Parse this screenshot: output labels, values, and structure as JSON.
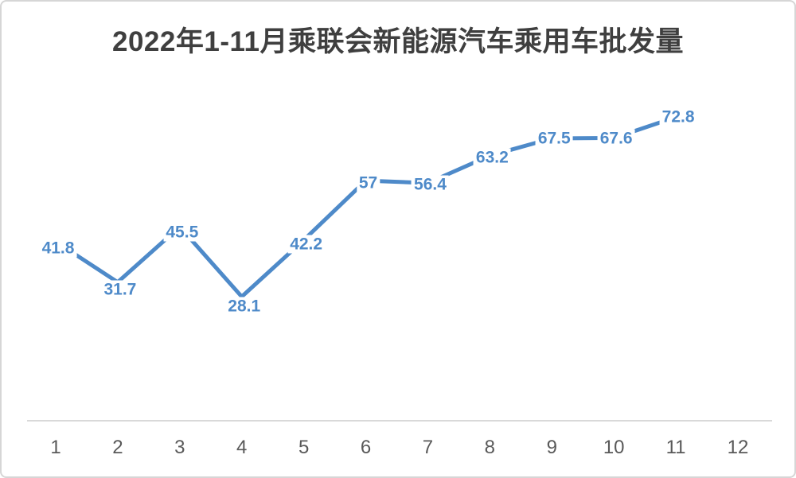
{
  "chart_data": {
    "type": "line",
    "title": "2022年1-11月乘联会新能源汽车乘用车批发量",
    "categories": [
      "1",
      "2",
      "3",
      "4",
      "5",
      "6",
      "7",
      "8",
      "9",
      "10",
      "11",
      "12"
    ],
    "values": [
      41.8,
      31.7,
      45.5,
      28.1,
      42.2,
      57,
      56.4,
      63.2,
      67.5,
      67.6,
      72.8
    ],
    "data_labels": [
      "41.8",
      "31.7",
      "45.5",
      "28.1",
      "42.2",
      "57",
      "56.4",
      "63.2",
      "67.5",
      "67.6",
      "72.8"
    ],
    "xlabel": "",
    "ylabel": "",
    "legend": "none",
    "grid": false,
    "ylim_note": "no y-axis shown; values only as data labels",
    "colors": {
      "line": "#4e8ac9",
      "data_label": "#4e8ac9",
      "title": "#3f3f3f",
      "axis_tick_label": "#595959",
      "axis_line": "#d9d9d9",
      "background": "#ffffff",
      "border": "#d6d6d6"
    }
  }
}
